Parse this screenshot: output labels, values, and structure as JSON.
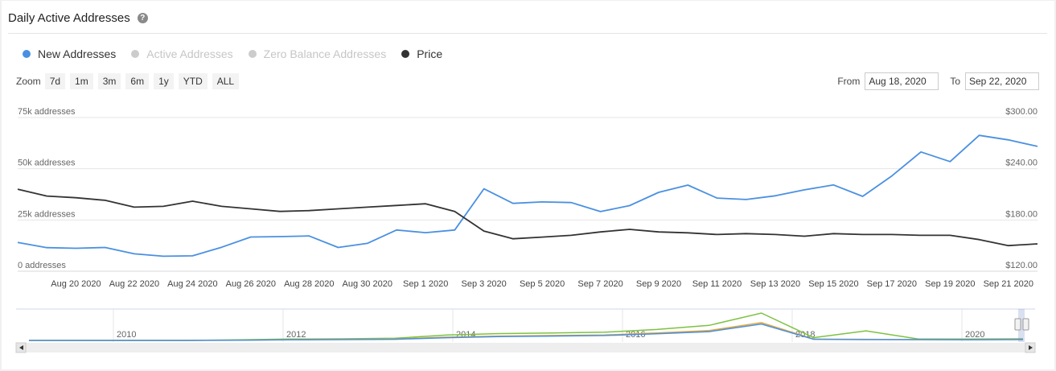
{
  "header": {
    "title": "Daily Active Addresses",
    "help_icon": "question-circle-icon",
    "help_glyph": "?"
  },
  "legend": [
    {
      "label": "New Addresses",
      "color": "#4a90e2",
      "enabled": true
    },
    {
      "label": "Active Addresses",
      "color": "#cccccc",
      "enabled": false
    },
    {
      "label": "Zero Balance Addresses",
      "color": "#cccccc",
      "enabled": false
    },
    {
      "label": "Price",
      "color": "#333333",
      "enabled": true
    }
  ],
  "zoom": {
    "label": "Zoom",
    "buttons": [
      "7d",
      "1m",
      "3m",
      "6m",
      "1y",
      "YTD",
      "ALL"
    ]
  },
  "range": {
    "from_label": "From",
    "from_value": "Aug 18, 2020",
    "to_label": "To",
    "to_value": "Sep 22, 2020"
  },
  "chart_data": {
    "type": "line",
    "x": [
      "Aug 18 2020",
      "Aug 19 2020",
      "Aug 20 2020",
      "Aug 21 2020",
      "Aug 22 2020",
      "Aug 23 2020",
      "Aug 24 2020",
      "Aug 25 2020",
      "Aug 26 2020",
      "Aug 27 2020",
      "Aug 28 2020",
      "Aug 29 2020",
      "Aug 30 2020",
      "Aug 31 2020",
      "Sep 1 2020",
      "Sep 2 2020",
      "Sep 3 2020",
      "Sep 4 2020",
      "Sep 5 2020",
      "Sep 6 2020",
      "Sep 7 2020",
      "Sep 8 2020",
      "Sep 9 2020",
      "Sep 10 2020",
      "Sep 11 2020",
      "Sep 12 2020",
      "Sep 13 2020",
      "Sep 14 2020",
      "Sep 15 2020",
      "Sep 16 2020",
      "Sep 17 2020",
      "Sep 18 2020",
      "Sep 19 2020",
      "Sep 20 2020",
      "Sep 21 2020",
      "Sep 22 2020"
    ],
    "x_tick_labels": [
      "Aug 20 2020",
      "Aug 22 2020",
      "Aug 24 2020",
      "Aug 26 2020",
      "Aug 28 2020",
      "Aug 30 2020",
      "Sep 1 2020",
      "Sep 3 2020",
      "Sep 5 2020",
      "Sep 7 2020",
      "Sep 9 2020",
      "Sep 11 2020",
      "Sep 13 2020",
      "Sep 15 2020",
      "Sep 17 2020",
      "Sep 19 2020",
      "Sep 21 2020"
    ],
    "series": [
      {
        "name": "New Addresses",
        "axis": "left",
        "color": "#4a90e2",
        "values": [
          14000,
          11500,
          11200,
          11600,
          8500,
          7300,
          7500,
          11700,
          16700,
          16900,
          17200,
          11600,
          13600,
          20100,
          18800,
          20100,
          40200,
          33100,
          33800,
          33500,
          29100,
          32000,
          38500,
          42000,
          35700,
          35000,
          36800,
          39700,
          42100,
          36500,
          46500,
          58200,
          53500,
          66300,
          64100,
          60900
        ]
      },
      {
        "name": "Price",
        "axis": "right",
        "color": "#333333",
        "values": [
          216,
          208,
          206,
          203,
          195,
          196,
          202,
          196,
          193,
          190,
          191,
          193,
          195,
          197,
          199,
          190,
          167,
          158,
          160,
          162,
          166,
          169,
          166,
          165,
          163,
          164,
          163,
          161,
          164,
          163,
          163,
          162,
          162,
          157,
          150,
          152
        ]
      }
    ],
    "y_left": {
      "min": 0,
      "max": 75000,
      "ticks": [
        "0 addresses",
        "25k addresses",
        "50k addresses",
        "75k addresses"
      ]
    },
    "y_right": {
      "min": 120,
      "max": 300,
      "ticks": [
        "$120.00",
        "$180.00",
        "$240.00",
        "$300.00"
      ]
    },
    "navigator": {
      "year_labels": [
        "2010",
        "2012",
        "2014",
        "2016",
        "2018",
        "2020"
      ],
      "series": [
        {
          "name": "Active Addresses",
          "color": "#7cc242",
          "values": [
            0,
            0,
            0,
            0,
            0.02,
            0.05,
            0.06,
            0.08,
            0.2,
            0.25,
            0.27,
            0.3,
            0.4,
            0.55,
            1.0,
            0.1,
            0.35,
            0.05,
            0.05,
            0.06
          ]
        },
        {
          "name": "Price",
          "color": "#e0a83a",
          "values": [
            0,
            0,
            0,
            0,
            0.01,
            0.03,
            0.04,
            0.05,
            0.12,
            0.16,
            0.18,
            0.2,
            0.27,
            0.36,
            0.65,
            0.05,
            0.04,
            0.03,
            0.03,
            0.04
          ]
        },
        {
          "name": "New Addresses",
          "color": "#4a90e2",
          "values": [
            0,
            0,
            0,
            0,
            0.01,
            0.02,
            0.03,
            0.04,
            0.1,
            0.14,
            0.16,
            0.18,
            0.24,
            0.32,
            0.6,
            0.04,
            0.03,
            0.03,
            0.02,
            0.03
          ]
        }
      ]
    }
  }
}
